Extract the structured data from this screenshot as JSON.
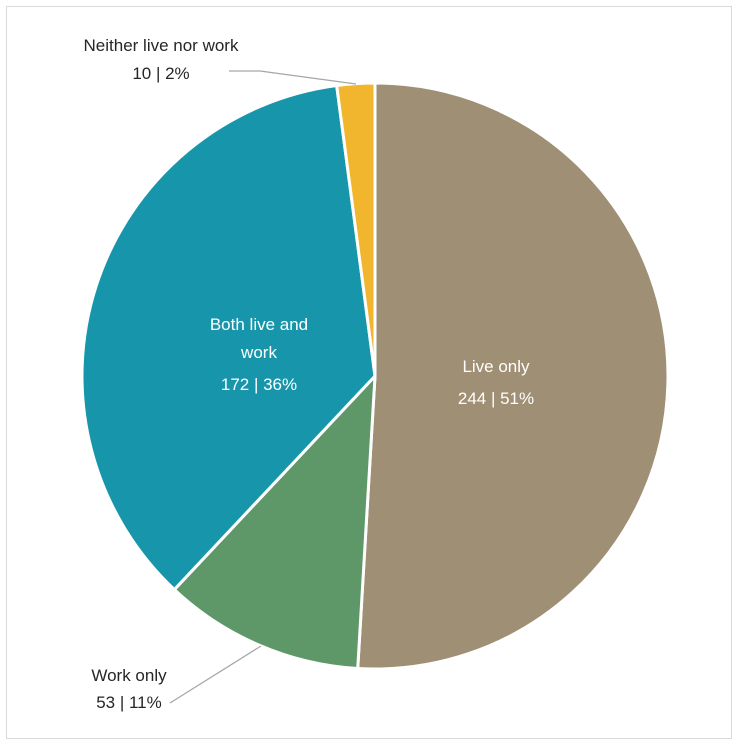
{
  "chart_data": {
    "type": "pie",
    "title": "",
    "slices": [
      {
        "name": "Live only",
        "value": 244,
        "value_label": "244 | 51%",
        "color": "#9f8f74"
      },
      {
        "name": "Work only",
        "value": 53,
        "value_label": "53 | 11%",
        "color": "#5e9868"
      },
      {
        "name": "Both live and work",
        "value": 172,
        "value_label": "172 | 36%",
        "color": "#1796ab"
      },
      {
        "name": "Neither live nor work",
        "value": 10,
        "value_label": "10 | 2%",
        "color": "#f2b62e"
      }
    ],
    "label_lines": {
      "both": [
        "Both live and",
        "work"
      ]
    },
    "start_angle": "12 o'clock",
    "direction": "clockwise",
    "legend": "none"
  }
}
